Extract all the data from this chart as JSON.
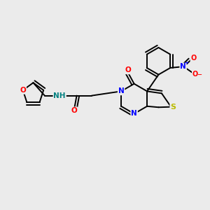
{
  "bg_color": "#ebebeb",
  "atom_colors": {
    "C": "#000000",
    "N": "#0000ff",
    "O": "#ff0000",
    "S": "#bbbb00",
    "H": "#008080"
  },
  "bond_lw": 1.4,
  "font_size": 7.5
}
